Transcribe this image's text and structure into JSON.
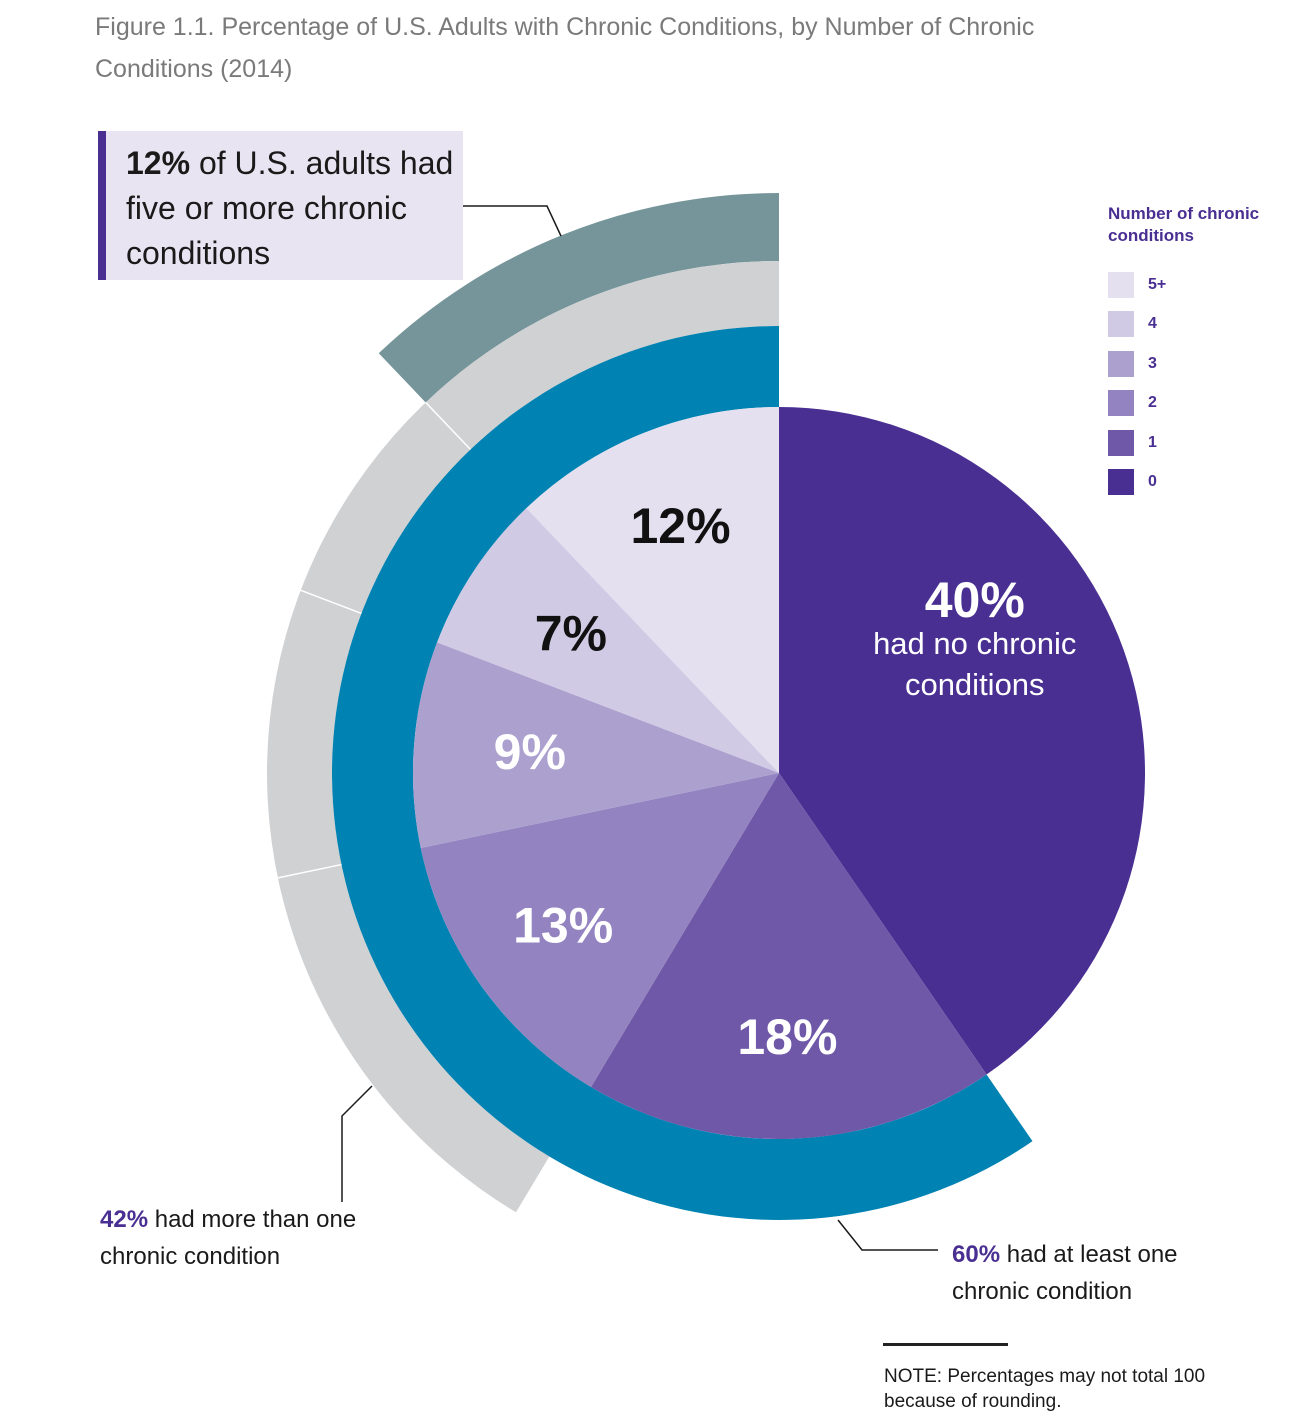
{
  "title": "Figure 1.1. Percentage of U.S. Adults with Chronic Conditions, by Number of Chronic Conditions (2014)",
  "callout_five_plus": {
    "bold": "12%",
    "text": " of U.S. adults had five or more chronic conditions"
  },
  "legend": {
    "title": "Number of chronic conditions",
    "items": [
      {
        "label": "5+",
        "color": "#e4e0f0"
      },
      {
        "label": "4",
        "color": "#d0cae4"
      },
      {
        "label": "3",
        "color": "#aca0cf"
      },
      {
        "label": "2",
        "color": "#9383c0"
      },
      {
        "label": "1",
        "color": "#6f58a8"
      },
      {
        "label": "0",
        "color": "#4a2f93"
      }
    ]
  },
  "annotations": {
    "at_least_one": {
      "bold": "60%",
      "text": " had at least one chronic condition"
    },
    "more_than_one": {
      "bold": "42%",
      "text": " had more than one chronic condition"
    }
  },
  "note": "NOTE: Percentages may not total 100 because of rounding.",
  "chart_data": {
    "type": "pie",
    "title": "Figure 1.1. Percentage of U.S. Adults with Chronic Conditions, by Number of Chronic Conditions (2014)",
    "unit": "%",
    "slices": [
      {
        "category": "0",
        "value": 40,
        "label": "40%",
        "sublabel": "had no chronic conditions",
        "color": "#4a2f93",
        "label_color": "#ffffff"
      },
      {
        "category": "1",
        "value": 18,
        "label": "18%",
        "color": "#6f58a8",
        "label_color": "#ffffff"
      },
      {
        "category": "2",
        "value": 13,
        "label": "13%",
        "color": "#9383c0",
        "label_color": "#ffffff"
      },
      {
        "category": "3",
        "value": 9,
        "label": "9%",
        "color": "#aca0cf",
        "label_color": "#ffffff"
      },
      {
        "category": "4",
        "value": 7,
        "label": "7%",
        "color": "#d0cae4",
        "label_color": "#111111"
      },
      {
        "category": "5+",
        "value": 12,
        "label": "12%",
        "color": "#e4e0f0",
        "label_color": "#111111"
      }
    ],
    "rings": [
      {
        "group": "at least one chronic condition",
        "value": 60,
        "categories": [
          "1",
          "2",
          "3",
          "4",
          "5+"
        ],
        "color": "#0083b3"
      },
      {
        "group": "more than one chronic condition",
        "value": 42,
        "categories": [
          "2",
          "3",
          "4",
          "5+"
        ],
        "color": "#d0d1d3"
      },
      {
        "group": "five or more chronic conditions",
        "value": 12,
        "categories": [
          "5+"
        ],
        "color": "#76959a"
      }
    ]
  }
}
